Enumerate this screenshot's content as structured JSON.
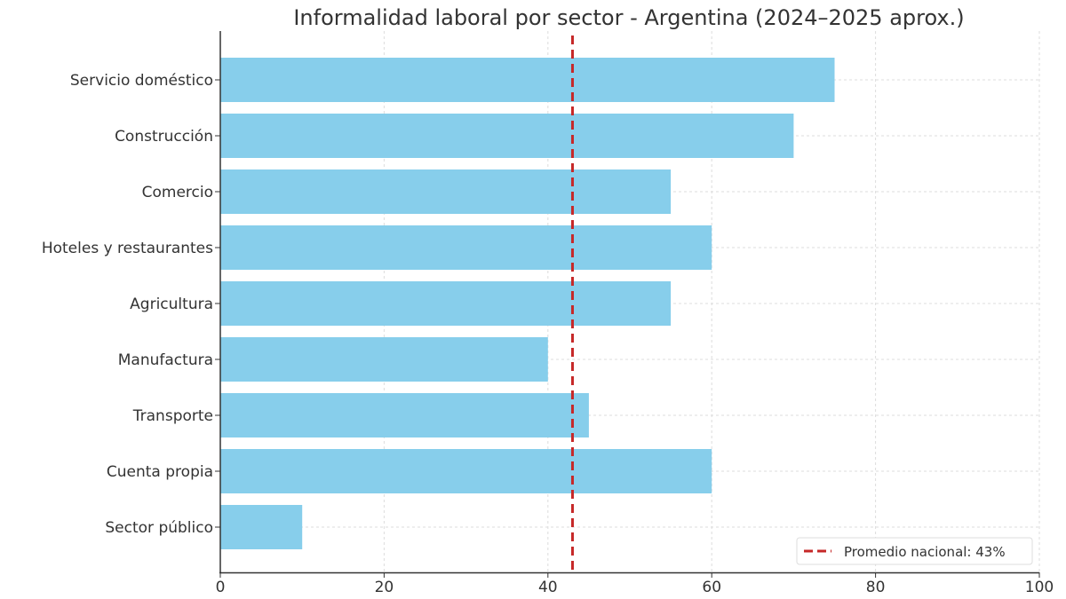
{
  "chart_data": {
    "type": "bar",
    "orientation": "horizontal",
    "title": "Informalidad laboral por sector - Argentina (2024–2025 aprox.)",
    "xlabel": "",
    "ylabel": "",
    "categories": [
      "Servicio doméstico",
      "Construcción",
      "Comercio",
      "Hoteles y restaurantes",
      "Agricultura",
      "Manufactura",
      "Transporte",
      "Cuenta propia",
      "Sector público"
    ],
    "values": [
      75,
      70,
      55,
      60,
      55,
      40,
      45,
      60,
      10
    ],
    "xlim": [
      0,
      100
    ],
    "xticks": [
      0,
      20,
      40,
      60,
      80,
      100
    ],
    "grid": true,
    "bar_color": "#87ceeb",
    "reference_line": {
      "value": 43,
      "label": "Promedio nacional: 43%",
      "color": "#c62828",
      "style": "dashed"
    },
    "legend_position": "bottom-right"
  }
}
